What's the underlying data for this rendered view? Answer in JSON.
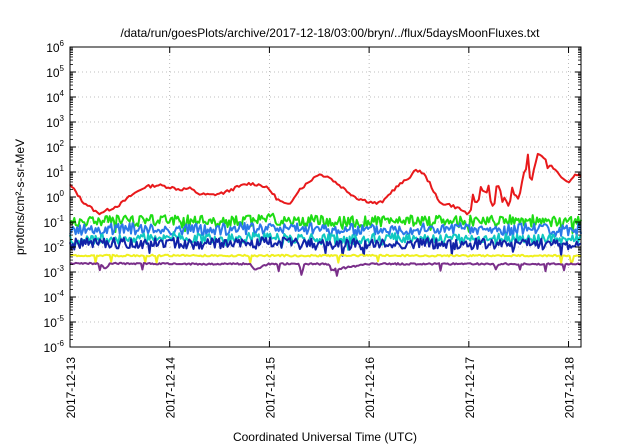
{
  "chart_data": {
    "type": "line",
    "title": "/data/run/goesPlots/archive/2017-12-18/03:00/bryn/../flux/5daysMoonFluxes.txt",
    "xlabel": "Coordinated Universal Time (UTC)",
    "ylabel": "protons/cm²-s-sr-MeV",
    "y_scale": "log",
    "ylim_exp": [
      -6,
      6
    ],
    "y_tick_base": "10",
    "y_tick_exponents": [
      "-6",
      "-5",
      "-4",
      "-3",
      "-2",
      "-1",
      "0",
      "1",
      "2",
      "3",
      "4",
      "5",
      "6"
    ],
    "xlim": [
      "2017-12-13T00:00",
      "2017-12-18T03:00"
    ],
    "x_ticks": [
      "2017-12-13",
      "2017-12-14",
      "2017-12-15",
      "2017-12-16",
      "2017-12-17",
      "2017-12-18"
    ],
    "grid": true,
    "series": [
      {
        "color": "#e8191b",
        "x": [
          0,
          0.06,
          0.12,
          0.2,
          0.28,
          0.38,
          0.5,
          0.62,
          0.75,
          0.88,
          1.0,
          1.1,
          1.2,
          1.3,
          1.42,
          1.55,
          1.68,
          1.8,
          1.92,
          2.0,
          2.08,
          2.15,
          2.2,
          2.25,
          2.3,
          2.38,
          2.48,
          2.58,
          2.7,
          2.8,
          2.88,
          2.95,
          3.0,
          3.08,
          3.15,
          3.22,
          3.3,
          3.38,
          3.45,
          3.5,
          3.55,
          3.62,
          3.7,
          3.8,
          3.9,
          4.0,
          4.05,
          4.1,
          4.15,
          4.2,
          4.25,
          4.3,
          4.35,
          4.4,
          4.45,
          4.5,
          4.55,
          4.6,
          4.62,
          4.66,
          4.7,
          4.75,
          4.8,
          4.85,
          4.9,
          4.95,
          5.0,
          5.05,
          5.08,
          5.125
        ],
        "y": [
          3,
          1.6,
          0.7,
          0.4,
          0.22,
          0.3,
          0.5,
          1.2,
          2.5,
          3.0,
          2.5,
          2.0,
          2.2,
          1.3,
          1.2,
          1.5,
          2.5,
          3.5,
          3.0,
          2.0,
          0.8,
          0.55,
          0.45,
          1.1,
          2.0,
          3.5,
          8.0,
          7.0,
          3.0,
          1.5,
          0.9,
          0.75,
          0.65,
          0.55,
          0.7,
          1.6,
          3.0,
          5.0,
          10.0,
          12.0,
          8.0,
          3.0,
          0.6,
          0.5,
          0.35,
          0.2,
          0.6,
          0.8,
          2.0,
          1.0,
          0.35,
          3.0,
          0.4,
          0.5,
          1.5,
          0.9,
          8.0,
          20.0,
          3.0,
          20.0,
          60.0,
          40.0,
          20.0,
          15.0,
          8.0,
          5.0,
          4.0,
          6.0,
          8.0,
          7.0
        ]
      },
      {
        "color": "#1edc14",
        "x": [
          0,
          0.5,
          1.0,
          1.5,
          2.0,
          2.5,
          3.0,
          3.5,
          4.0,
          4.5,
          5.0,
          5.125
        ],
        "y": [
          0.09,
          0.11,
          0.12,
          0.1,
          0.13,
          0.11,
          0.1,
          0.12,
          0.11,
          0.12,
          0.1,
          0.13
        ]
      },
      {
        "color": "#2a78e8",
        "x": [
          0,
          0.5,
          1.0,
          1.5,
          2.0,
          2.5,
          3.0,
          3.5,
          4.0,
          4.5,
          5.0,
          5.125
        ],
        "y": [
          0.045,
          0.05,
          0.055,
          0.05,
          0.06,
          0.05,
          0.05,
          0.055,
          0.05,
          0.05,
          0.045,
          0.05
        ]
      },
      {
        "color": "#10c8c0",
        "x": [
          0,
          0.5,
          1.0,
          1.5,
          2.0,
          2.5,
          3.0,
          3.5,
          4.0,
          4.5,
          5.0,
          5.125
        ],
        "y": [
          0.02,
          0.022,
          0.025,
          0.022,
          0.024,
          0.02,
          0.021,
          0.023,
          0.02,
          0.022,
          0.019,
          0.021
        ]
      },
      {
        "color": "#1122a8",
        "x": [
          0,
          0.5,
          1.0,
          1.5,
          2.0,
          2.5,
          3.0,
          3.5,
          4.0,
          4.5,
          5.0,
          5.125
        ],
        "y": [
          0.013,
          0.014,
          0.015,
          0.013,
          0.015,
          0.013,
          0.013,
          0.014,
          0.013,
          0.014,
          0.012,
          0.013
        ]
      },
      {
        "color": "#f0f020",
        "x": [
          0,
          0.5,
          1.0,
          1.5,
          2.0,
          2.5,
          3.0,
          3.5,
          4.0,
          4.5,
          5.0,
          5.125
        ],
        "y": [
          0.0045,
          0.0045,
          0.0046,
          0.0045,
          0.0045,
          0.0045,
          0.0046,
          0.0045,
          0.0045,
          0.0045,
          0.0045,
          0.0045
        ]
      },
      {
        "color": "#7a2f8a",
        "x": [
          0,
          0.3,
          0.35,
          0.4,
          1.0,
          1.8,
          1.85,
          2.0,
          2.3,
          2.32,
          2.35,
          2.6,
          2.62,
          3.0,
          4.0,
          4.25,
          4.27,
          4.3,
          5.0,
          5.125
        ],
        "y": [
          0.0022,
          0.0022,
          0.0013,
          0.0022,
          0.0021,
          0.0021,
          0.0013,
          0.0021,
          0.0021,
          0.0007,
          0.0021,
          0.0021,
          0.0012,
          0.0021,
          0.0021,
          0.0021,
          0.0012,
          0.0021,
          0.0021,
          0.0021
        ]
      }
    ]
  }
}
